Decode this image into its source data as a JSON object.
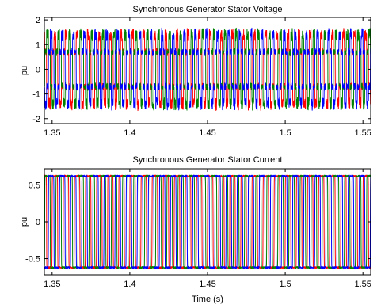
{
  "chart_data": [
    {
      "type": "line",
      "title": "Synchronous Generator Stator Voltage",
      "xlabel": "",
      "ylabel": "pu",
      "xlim": [
        1.345,
        1.555
      ],
      "ylim": [
        -2.2,
        2.1
      ],
      "xticks": [
        1.35,
        1.4,
        1.45,
        1.5,
        1.55
      ],
      "xtick_labels": [
        "1.35",
        "1.4",
        "1.45",
        "1.5",
        "1.55"
      ],
      "yticks": [
        2,
        1,
        0,
        -1,
        -2
      ],
      "ytick_labels": [
        "2",
        "1",
        "0",
        "-1",
        "-2"
      ],
      "grid": false,
      "waveform": "six-step stepped voltage with switching ripple",
      "frequency_hz": 140,
      "amplitude": 1.4,
      "step_level": 0.7,
      "ripple": 0.22,
      "series": [
        {
          "color": "#ff0000",
          "phase_deg": 0
        },
        {
          "color": "#008000",
          "phase_deg": -120
        },
        {
          "color": "#0000ff",
          "phase_deg": 120
        }
      ]
    },
    {
      "type": "line",
      "title": "Synchronous Generator Stator Current",
      "xlabel": "Time (s)",
      "ylabel": "pu",
      "xlim": [
        1.345,
        1.555
      ],
      "ylim": [
        -0.72,
        0.72
      ],
      "xticks": [
        1.35,
        1.4,
        1.45,
        1.5,
        1.55
      ],
      "xtick_labels": [
        "1.35",
        "1.4",
        "1.45",
        "1.5",
        "1.55"
      ],
      "yticks": [
        0.5,
        0,
        -0.5
      ],
      "ytick_labels": [
        "0.5",
        "0",
        "-0.5"
      ],
      "grid": false,
      "waveform": "quasi-square current with rounded edges",
      "frequency_hz": 140,
      "amplitude": 0.62,
      "series": [
        {
          "color": "#ff0000",
          "phase_deg": 0
        },
        {
          "color": "#008000",
          "phase_deg": -120
        },
        {
          "color": "#0000ff",
          "phase_deg": 120
        }
      ]
    }
  ]
}
